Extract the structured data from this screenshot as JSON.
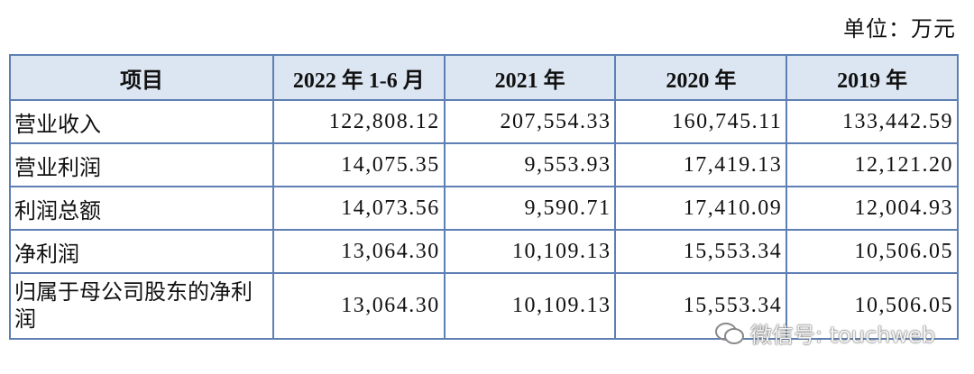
{
  "unit": "单位：万元",
  "table": {
    "header": [
      "项目",
      "2022 年 1-6 月",
      "2021 年",
      "2020 年",
      "2019 年"
    ],
    "rows": [
      [
        "营业收入",
        "122,808.12",
        "207,554.33",
        "160,745.11",
        "133,442.59"
      ],
      [
        "营业利润",
        "14,075.35",
        "9,553.93",
        "17,419.13",
        "12,121.20"
      ],
      [
        "利润总额",
        "14,073.56",
        "9,590.71",
        "17,410.09",
        "12,004.93"
      ],
      [
        "净利润",
        "13,064.30",
        "10,109.13",
        "15,553.34",
        "10,506.05"
      ],
      [
        "归属于母公司股东的净利润",
        "13,064.30",
        "10,109.13",
        "15,553.34",
        "10,506.05"
      ]
    ]
  },
  "watermark": "微信号: touchweb"
}
